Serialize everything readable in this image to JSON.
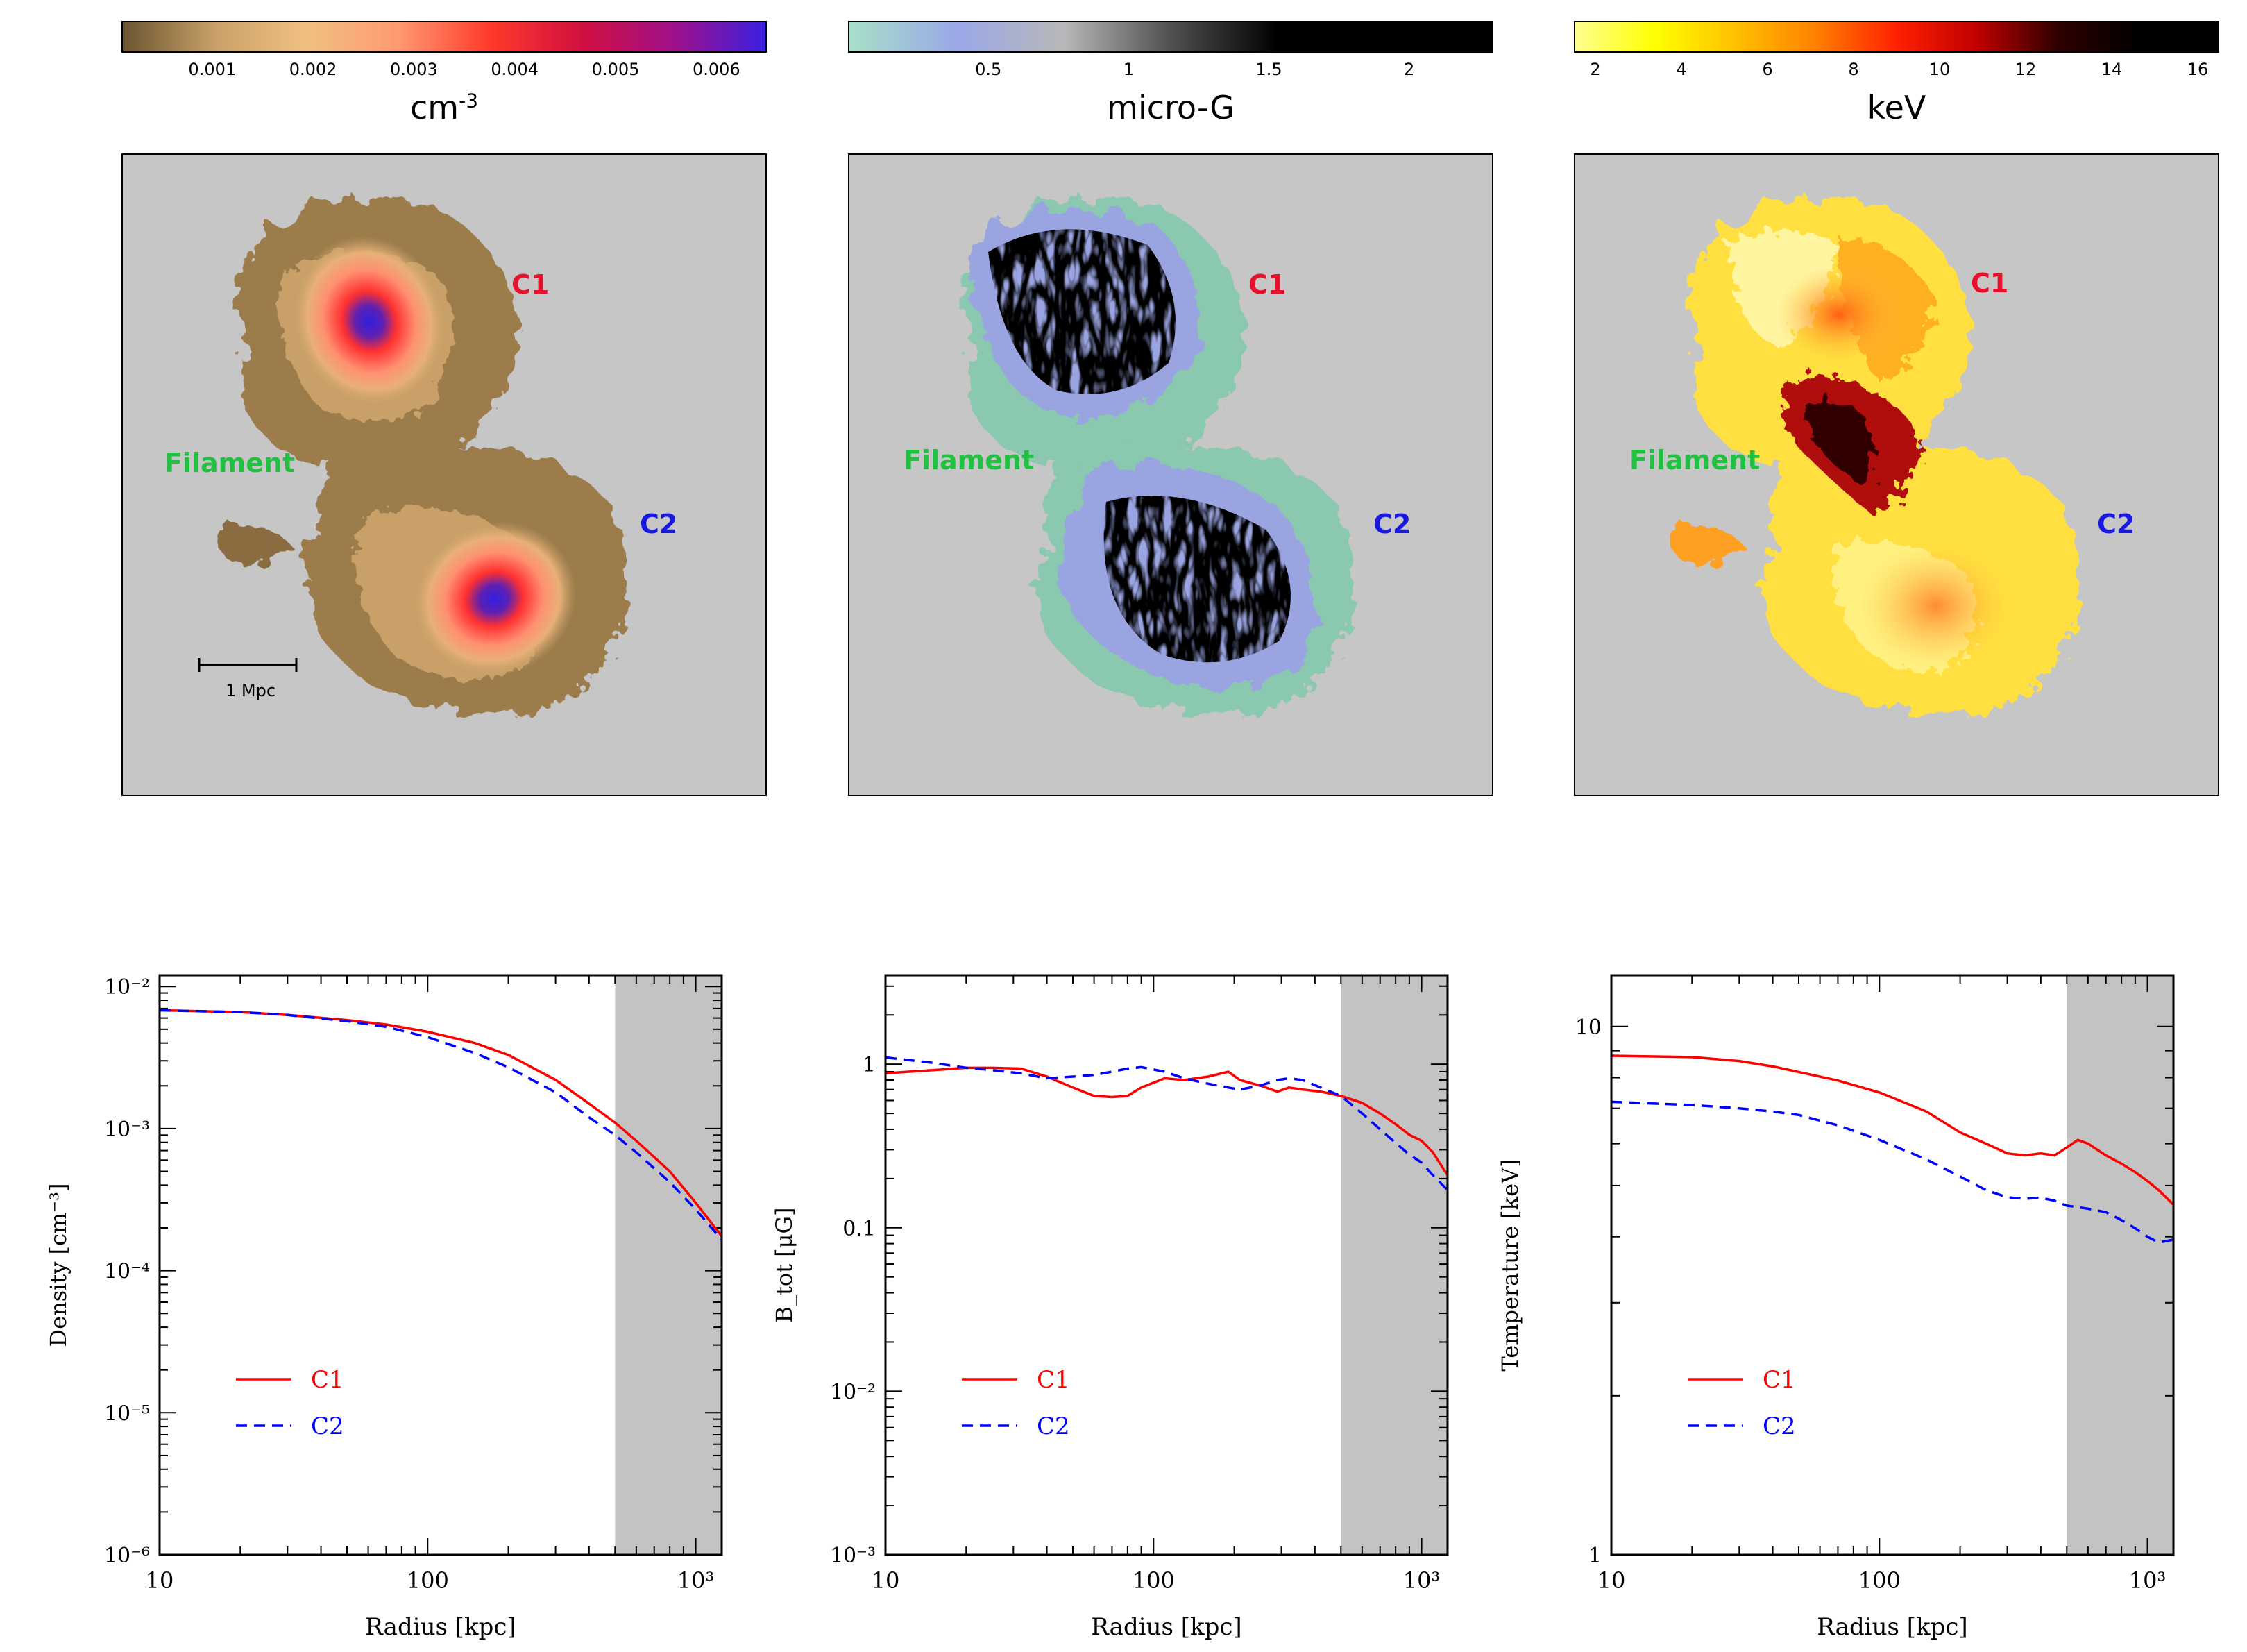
{
  "colorbars": [
    {
      "unit": "cm",
      "unit_sup": "-3",
      "ticks": [
        "0.001",
        "0.002",
        "0.003",
        "0.004",
        "0.005",
        "0.006"
      ],
      "tick_values": [
        0.001,
        0.002,
        0.003,
        0.004,
        0.005,
        0.006
      ],
      "min": 0.0001,
      "max": 0.0065,
      "stops": [
        "#6b5530",
        "#c8a068",
        "#f0c080",
        "#ff9a70",
        "#ff3a2a",
        "#d01040",
        "#a0108a",
        "#3a20e0"
      ]
    },
    {
      "unit": "micro-G",
      "ticks": [
        "0.5",
        "1",
        "1.5",
        "2"
      ],
      "tick_values": [
        0.5,
        1,
        1.5,
        2
      ],
      "min": 0.0,
      "max": 2.3,
      "stops": [
        "#a8e0c8",
        "#9aa8e8",
        "#b8b8b8",
        "#505050",
        "#000000",
        "#000000",
        "#000000"
      ]
    },
    {
      "unit": "keV",
      "ticks": [
        "2",
        "4",
        "6",
        "8",
        "10",
        "12",
        "14",
        "16"
      ],
      "tick_values": [
        2,
        4,
        6,
        8,
        10,
        12,
        14,
        16
      ],
      "min": 1.5,
      "max": 16.5,
      "stops": [
        "#ffff90",
        "#ffff00",
        "#ffc000",
        "#ff8000",
        "#ff2000",
        "#c00000",
        "#300000",
        "#000000",
        "#000000"
      ]
    }
  ],
  "maps": [
    {
      "labels": {
        "c1": "C1",
        "c2": "C2",
        "filament": "Filament"
      },
      "scale_bar": "1 Mpc"
    },
    {
      "labels": {
        "c1": "C1",
        "c2": "C2",
        "filament": "Filament"
      }
    },
    {
      "labels": {
        "c1": "C1",
        "c2": "C2",
        "filament": "Filament"
      }
    }
  ],
  "colors": {
    "c1": "#e8102a",
    "c2": "#1818e0",
    "filament": "#20c040",
    "panel_bg": "#c6c6c6"
  },
  "chart_data": [
    {
      "type": "line",
      "xlabel": "Radius [kpc]",
      "ylabel": "Density [cm⁻³]",
      "xscale": "log",
      "yscale": "log",
      "xlim": [
        10,
        1250
      ],
      "ylim": [
        1e-06,
        0.012
      ],
      "x_ticks": [
        "10",
        "100",
        "10³"
      ],
      "x_tick_values": [
        10,
        100,
        1000
      ],
      "y_ticks": [
        "10⁻⁶",
        "10⁻⁵",
        "10⁻⁴",
        "10⁻³",
        "10⁻²"
      ],
      "y_tick_values": [
        1e-06,
        1e-05,
        0.0001,
        0.001,
        0.01
      ],
      "shaded_region": [
        500,
        1250
      ],
      "series": [
        {
          "name": "C1",
          "style": "solid",
          "color": "#ff0000",
          "x": [
            10,
            20,
            30,
            50,
            70,
            100,
            150,
            200,
            300,
            400,
            500,
            600,
            800,
            1000,
            1250
          ],
          "y": [
            0.0068,
            0.0066,
            0.0063,
            0.0058,
            0.0054,
            0.0048,
            0.004,
            0.0033,
            0.0022,
            0.0015,
            0.0011,
            0.00082,
            0.0005,
            0.0003,
            0.000175
          ]
        },
        {
          "name": "C2",
          "style": "dashed",
          "color": "#0000ff",
          "x": [
            10,
            20,
            30,
            50,
            70,
            100,
            150,
            200,
            300,
            400,
            500,
            600,
            800,
            1000,
            1250
          ],
          "y": [
            0.0068,
            0.0066,
            0.0063,
            0.0057,
            0.0052,
            0.0044,
            0.0034,
            0.0027,
            0.0018,
            0.0012,
            0.0009,
            0.00068,
            0.00042,
            0.00027,
            0.000165
          ]
        }
      ]
    },
    {
      "type": "line",
      "xlabel": "Radius [kpc]",
      "ylabel": "B_tot [μG]",
      "xscale": "log",
      "yscale": "log",
      "xlim": [
        10,
        1250
      ],
      "ylim": [
        0.001,
        3.5
      ],
      "x_ticks": [
        "10",
        "100",
        "10³"
      ],
      "x_tick_values": [
        10,
        100,
        1000
      ],
      "y_ticks": [
        "10⁻³",
        "10⁻²",
        "0.1",
        "1"
      ],
      "y_tick_values": [
        0.001,
        0.01,
        0.1,
        1
      ],
      "shaded_region": [
        500,
        1250
      ],
      "series": [
        {
          "name": "C1",
          "style": "solid",
          "color": "#ff0000",
          "x": [
            10,
            15,
            20,
            25,
            32,
            40,
            50,
            60,
            70,
            80,
            90,
            110,
            130,
            160,
            190,
            210,
            250,
            290,
            320,
            360,
            420,
            500,
            600,
            700,
            800,
            900,
            1000,
            1100,
            1250
          ],
          "y": [
            0.88,
            0.92,
            0.95,
            0.95,
            0.94,
            0.84,
            0.72,
            0.64,
            0.63,
            0.64,
            0.72,
            0.82,
            0.8,
            0.84,
            0.9,
            0.8,
            0.74,
            0.68,
            0.72,
            0.7,
            0.68,
            0.64,
            0.58,
            0.5,
            0.43,
            0.37,
            0.34,
            0.29,
            0.21
          ]
        },
        {
          "name": "C2",
          "style": "dashed",
          "color": "#0000ff",
          "x": [
            10,
            15,
            20,
            25,
            32,
            40,
            50,
            60,
            70,
            80,
            90,
            110,
            130,
            160,
            190,
            210,
            250,
            290,
            320,
            360,
            420,
            500,
            600,
            700,
            800,
            900,
            1000,
            1100,
            1250
          ],
          "y": [
            1.1,
            1.02,
            0.95,
            0.92,
            0.88,
            0.82,
            0.84,
            0.86,
            0.9,
            0.94,
            0.96,
            0.9,
            0.82,
            0.76,
            0.72,
            0.7,
            0.74,
            0.8,
            0.82,
            0.8,
            0.72,
            0.64,
            0.5,
            0.4,
            0.33,
            0.28,
            0.25,
            0.21,
            0.17
          ]
        }
      ]
    },
    {
      "type": "line",
      "xlabel": "Radius [kpc]",
      "ylabel": "Temperature [keV]",
      "xscale": "log",
      "yscale": "log",
      "xlim": [
        10,
        1250
      ],
      "ylim": [
        1,
        12.5
      ],
      "x_ticks": [
        "10",
        "100",
        "10³"
      ],
      "x_tick_values": [
        10,
        100,
        1000
      ],
      "y_ticks": [
        "1",
        "10"
      ],
      "y_tick_values": [
        1,
        10
      ],
      "shaded_region": [
        500,
        1250
      ],
      "series": [
        {
          "name": "C1",
          "style": "solid",
          "color": "#ff0000",
          "x": [
            10,
            20,
            30,
            40,
            50,
            70,
            100,
            150,
            200,
            250,
            300,
            350,
            400,
            450,
            500,
            550,
            600,
            700,
            800,
            900,
            1000,
            1100,
            1250
          ],
          "y": [
            8.8,
            8.75,
            8.6,
            8.4,
            8.2,
            7.9,
            7.5,
            6.9,
            6.3,
            6.0,
            5.75,
            5.7,
            5.75,
            5.7,
            5.9,
            6.1,
            6.0,
            5.7,
            5.5,
            5.3,
            5.1,
            4.9,
            4.6
          ]
        },
        {
          "name": "C2",
          "style": "dashed",
          "color": "#0000ff",
          "x": [
            10,
            20,
            30,
            40,
            50,
            70,
            100,
            150,
            200,
            250,
            300,
            350,
            400,
            450,
            500,
            550,
            600,
            700,
            800,
            900,
            1000,
            1100,
            1250
          ],
          "y": [
            7.2,
            7.1,
            7.0,
            6.9,
            6.8,
            6.5,
            6.1,
            5.6,
            5.2,
            4.9,
            4.75,
            4.72,
            4.74,
            4.68,
            4.58,
            4.55,
            4.52,
            4.45,
            4.3,
            4.15,
            4.0,
            3.9,
            3.95
          ]
        }
      ]
    }
  ]
}
